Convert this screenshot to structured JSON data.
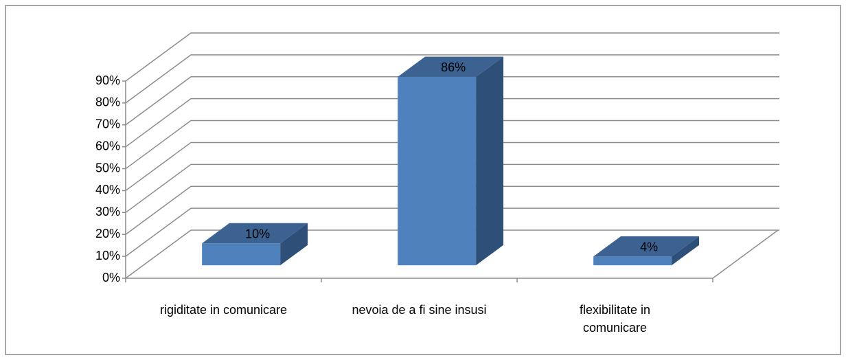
{
  "chart_data": {
    "type": "bar3d",
    "categories": [
      "rigiditate in comunicare",
      "nevoia de a fi sine insusi",
      "flexibilitate in comunicare"
    ],
    "values": [
      10,
      86,
      4
    ],
    "value_labels": [
      "10%",
      "86%",
      "4%"
    ],
    "color": "#4f81bd",
    "ylim": [
      0,
      90
    ],
    "yticks": [
      {
        "value": 0,
        "label": "0%"
      },
      {
        "value": 10,
        "label": "10%"
      },
      {
        "value": 20,
        "label": "20%"
      },
      {
        "value": 30,
        "label": "30%"
      },
      {
        "value": 40,
        "label": "40%"
      },
      {
        "value": 50,
        "label": "50%"
      },
      {
        "value": 60,
        "label": "60%"
      },
      {
        "value": 70,
        "label": "70%"
      },
      {
        "value": 80,
        "label": "80%"
      },
      {
        "value": 90,
        "label": "90%"
      }
    ],
    "grid": true
  }
}
